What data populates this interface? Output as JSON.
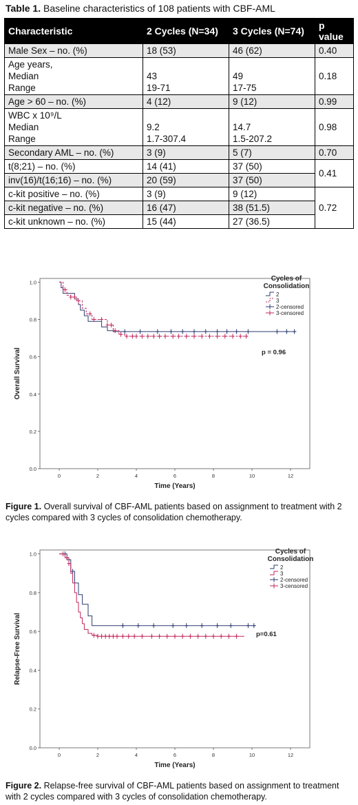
{
  "table": {
    "caption_label": "Table 1.",
    "caption_text": " Baseline characteristics of 108 patients with CBF-AML",
    "headers": [
      "Characteristic",
      "2 Cycles (N=34)",
      "3 Cycles (N=74)",
      "p value"
    ],
    "rows": {
      "male": {
        "c": "Male Sex – no. (%)",
        "a": "18 (53)",
        "b": "46 (62)",
        "p": "0.40"
      },
      "age": {
        "c1": "Age years,",
        "c2": "Median",
        "c3": "Range",
        "a2": "43",
        "a3": "19-71",
        "b2": "49",
        "b3": "17-75",
        "p": "0.18"
      },
      "age60": {
        "c": "Age > 60 – no. (%)",
        "a": "4 (12)",
        "b": "9 (12)",
        "p": "0.99"
      },
      "wbc": {
        "c1": "WBC x 10⁹/L",
        "c2": "Median",
        "c3": "Range",
        "a2": "9.2",
        "a3": "1.7-307.4",
        "b2": "14.7",
        "b3": "1.5-207.2",
        "p": "0.98"
      },
      "secondary": {
        "c": "Secondary AML – no. (%)",
        "a": "3 (9)",
        "b": "5 (7)",
        "p": "0.70"
      },
      "t821": {
        "c": "t(8;21) – no. (%)",
        "a": "14 (41)",
        "b": "37 (50)"
      },
      "inv16": {
        "c": "inv(16)/t(16;16) – no. (%)",
        "a": "20 (59)",
        "b": "37 (50)"
      },
      "t_p": "0.41",
      "kitpos": {
        "c": "c-kit positive – no. (%)",
        "a": "3 (9)",
        "b": "9 (12)"
      },
      "kitneg": {
        "c": "c-kit negative – no. (%)",
        "a": "16 (47)",
        "b": "38 (51.5)"
      },
      "kitunk": {
        "c": "c-kit unknown – no. (%)",
        "a": "15 (44)",
        "b": "27 (36.5)"
      },
      "kit_p": "0.72"
    }
  },
  "figure1": {
    "caption_label": "Figure 1.",
    "caption_text": " Overall survival of CBF-AML patients based on assignment to treatment with 2 cycles compared with 3 cycles of consolidation chemotherapy."
  },
  "figure2": {
    "caption_label": "Figure 2.",
    "caption_text": " Relapse-free survival of CBF-AML patients based on assignment to treatment with 2 cycles compared with 3 cycles of consolidation chemotherapy."
  },
  "colors": {
    "series2": "#2b3a6e",
    "series3": "#c0245a"
  },
  "chart_data": [
    {
      "type": "line",
      "chart_kind": "kaplan-meier",
      "xlabel": "Time (Years)",
      "ylabel": "Overall Survival",
      "xlim": [
        -1,
        13
      ],
      "ylim": [
        0,
        1.02
      ],
      "xticks": [
        0,
        2,
        4,
        6,
        8,
        10,
        12
      ],
      "yticks": [
        0.0,
        0.2,
        0.4,
        0.6,
        0.8,
        1.0
      ],
      "xtick_labels": [
        "0",
        "2",
        "4",
        "6",
        "8",
        "10",
        "12"
      ],
      "ytick_labels": [
        "0.0",
        "0.2",
        "0.4",
        "0.6",
        "0.8",
        "1.0"
      ],
      "legend_title": "Cycles of Consolidation",
      "legend_title_lines": [
        "Cycles of",
        "Consolidation"
      ],
      "legend_position": "top-right",
      "legend": [
        "2",
        "3",
        "2-censored",
        "3-censored"
      ],
      "annotation": "p = 0.96",
      "series": [
        {
          "name": "2",
          "style": "solid",
          "x": [
            0,
            0.1,
            0.2,
            0.5,
            0.8,
            1.0,
            1.1,
            1.3,
            1.5,
            2.2,
            2.5,
            2.8,
            3.0,
            12.3
          ],
          "y": [
            1.0,
            0.97,
            0.94,
            0.94,
            0.91,
            0.88,
            0.85,
            0.82,
            0.79,
            0.76,
            0.74,
            0.735,
            0.735,
            0.735
          ],
          "censored_x": [
            3.4,
            4.2,
            5.1,
            5.8,
            6.4,
            7.0,
            7.6,
            8.2,
            8.7,
            9.2,
            9.8,
            11.3,
            11.8,
            12.2
          ]
        },
        {
          "name": "3",
          "style": "dashed",
          "x": [
            0,
            0.2,
            0.4,
            0.6,
            0.9,
            1.2,
            1.4,
            1.7,
            2.0,
            2.5,
            2.8,
            3.1,
            3.4,
            9.8
          ],
          "y": [
            1.0,
            0.96,
            0.93,
            0.92,
            0.9,
            0.86,
            0.83,
            0.8,
            0.8,
            0.77,
            0.74,
            0.72,
            0.71,
            0.71
          ],
          "censored_x": [
            0.3,
            0.6,
            0.8,
            1.0,
            1.6,
            1.8,
            2.2,
            2.5,
            2.7,
            2.9,
            3.2,
            3.5,
            3.8,
            4.0,
            4.3,
            4.6,
            4.9,
            5.2,
            5.5,
            5.9,
            6.2,
            6.6,
            7.0,
            7.4,
            7.8,
            8.2,
            8.6,
            9.0,
            9.4,
            9.7
          ]
        }
      ]
    },
    {
      "type": "line",
      "chart_kind": "kaplan-meier",
      "xlabel": "Time (Years)",
      "ylabel": "Relapse-Free Survival",
      "xlim": [
        -1,
        13
      ],
      "ylim": [
        0,
        1.02
      ],
      "xticks": [
        0,
        2,
        4,
        6,
        8,
        10,
        12
      ],
      "yticks": [
        0.0,
        0.2,
        0.4,
        0.6,
        0.8,
        1.0
      ],
      "xtick_labels": [
        "0",
        "2",
        "4",
        "6",
        "8",
        "10",
        "12"
      ],
      "ytick_labels": [
        "0.0",
        "0.2",
        "0.4",
        "0.6",
        "0.8",
        "1.0"
      ],
      "legend_title": "Cycles of Consolidation",
      "legend_title_lines": [
        "Cycles of",
        "Consolidation"
      ],
      "legend_position": "top-right",
      "legend": [
        "2",
        "3",
        "2-censored",
        "3-censored"
      ],
      "annotation": "p=0.61",
      "series": [
        {
          "name": "2",
          "style": "solid",
          "x": [
            0,
            0.4,
            0.6,
            0.8,
            1.0,
            1.2,
            1.5,
            1.7,
            10.2
          ],
          "y": [
            1.0,
            0.97,
            0.91,
            0.85,
            0.79,
            0.74,
            0.68,
            0.63,
            0.63
          ],
          "censored_x": [
            0.3,
            0.5,
            0.7,
            3.3,
            4.1,
            4.9,
            5.9,
            6.6,
            7.4,
            8.2,
            8.9,
            9.8,
            10.1
          ]
        },
        {
          "name": "3",
          "style": "solid",
          "x": [
            0,
            0.3,
            0.5,
            0.6,
            0.7,
            0.8,
            0.9,
            1.0,
            1.1,
            1.2,
            1.3,
            1.5,
            1.7,
            2.0,
            9.6
          ],
          "y": [
            1.0,
            0.98,
            0.95,
            0.9,
            0.85,
            0.8,
            0.75,
            0.7,
            0.67,
            0.64,
            0.61,
            0.59,
            0.58,
            0.575,
            0.575
          ],
          "censored_x": [
            0.2,
            0.4,
            0.5,
            1.8,
            2.0,
            2.2,
            2.4,
            2.6,
            2.8,
            3.0,
            3.3,
            3.6,
            3.9,
            4.3,
            4.8,
            5.2,
            5.6,
            6.0,
            6.4,
            6.8,
            7.2,
            7.6,
            8.0,
            8.4,
            8.8,
            9.2
          ]
        }
      ]
    }
  ]
}
